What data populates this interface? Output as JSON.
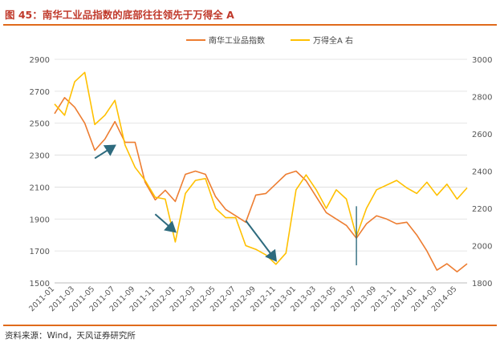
{
  "figure": {
    "title": "图 45：南华工业品指数的底部往往领先于万得全 A",
    "source": "资料来源：Wind，天风证券研究所"
  },
  "colors": {
    "accent": "#c0392b",
    "rule": "#e06a1b",
    "series_left": "#ed7d31",
    "series_right": "#ffc000",
    "arrow": "#2e6b7e",
    "grid": "#dcdcdc"
  },
  "chart_data": {
    "type": "line",
    "title": "",
    "grid": true,
    "legend_position": "top-center",
    "xlabel": "",
    "ylabel_left": "",
    "ylabel_right": "",
    "y_left": {
      "min": 1500,
      "max": 2900,
      "ticks": [
        1500,
        1700,
        1900,
        2100,
        2300,
        2500,
        2700,
        2900
      ]
    },
    "y_right": {
      "min": 1800,
      "max": 3000,
      "ticks": [
        1800,
        2000,
        2200,
        2400,
        2600,
        2800,
        3000
      ]
    },
    "x_ticks": [
      "2011-01",
      "2011-03",
      "2011-05",
      "2011-07",
      "2011-09",
      "2011-11",
      "2012-01",
      "2012-03",
      "2012-05",
      "2012-07",
      "2012-09",
      "2012-11",
      "2013-01",
      "2013-03",
      "2013-05",
      "2013-07",
      "2013-09",
      "2013-11",
      "2014-01",
      "2014-03",
      "2014-05"
    ],
    "series": [
      {
        "name": "南华工业品指数",
        "axis": "left",
        "x": [
          "2011-01",
          "2011-02",
          "2011-03",
          "2011-04",
          "2011-05",
          "2011-06",
          "2011-07",
          "2011-08",
          "2011-09",
          "2011-10",
          "2011-11",
          "2011-12",
          "2012-01",
          "2012-02",
          "2012-03",
          "2012-04",
          "2012-05",
          "2012-06",
          "2012-07",
          "2012-08",
          "2012-09",
          "2012-10",
          "2012-11",
          "2012-12",
          "2013-01",
          "2013-02",
          "2013-03",
          "2013-04",
          "2013-05",
          "2013-06",
          "2013-07",
          "2013-08",
          "2013-09",
          "2013-10",
          "2013-11",
          "2013-12",
          "2014-01",
          "2014-02",
          "2014-03",
          "2014-04",
          "2014-05",
          "2014-06"
        ],
        "values": [
          2560,
          2660,
          2600,
          2500,
          2330,
          2400,
          2510,
          2380,
          2380,
          2130,
          2020,
          2080,
          2010,
          2180,
          2200,
          2180,
          2040,
          1960,
          1920,
          1880,
          2050,
          2060,
          2120,
          2180,
          2200,
          2140,
          2040,
          1940,
          1900,
          1860,
          1780,
          1870,
          1920,
          1900,
          1870,
          1880,
          1800,
          1700,
          1580,
          1620,
          1570,
          1620
        ]
      },
      {
        "name": "万得全A 右",
        "axis": "right",
        "x": [
          "2011-01",
          "2011-02",
          "2011-03",
          "2011-04",
          "2011-05",
          "2011-06",
          "2011-07",
          "2011-08",
          "2011-09",
          "2011-10",
          "2011-11",
          "2011-12",
          "2012-01",
          "2012-02",
          "2012-03",
          "2012-04",
          "2012-05",
          "2012-06",
          "2012-07",
          "2012-08",
          "2012-09",
          "2012-10",
          "2012-11",
          "2012-12",
          "2013-01",
          "2013-02",
          "2013-03",
          "2013-04",
          "2013-05",
          "2013-06",
          "2013-07",
          "2013-08",
          "2013-09",
          "2013-11",
          "2013-12",
          "2014-01",
          "2014-02",
          "2014-03",
          "2014-04",
          "2014-05",
          "2014-06"
        ],
        "values": [
          2760,
          2700,
          2880,
          2930,
          2650,
          2700,
          2780,
          2540,
          2420,
          2350,
          2260,
          2250,
          2020,
          2280,
          2350,
          2360,
          2200,
          2150,
          2150,
          2000,
          1980,
          1950,
          1900,
          1960,
          2300,
          2380,
          2300,
          2200,
          2300,
          2250,
          2050,
          2200,
          2300,
          2350,
          2310,
          2280,
          2340,
          2270,
          2330,
          2250,
          2310
        ]
      }
    ],
    "arrows": [
      {
        "from": {
          "x": "2011-05",
          "y": 2280
        },
        "to": {
          "x": "2011-07",
          "y": 2360
        },
        "axis": "left"
      },
      {
        "from": {
          "x": "2011-11",
          "y": 1930
        },
        "to": {
          "x": "2012-01",
          "y": 1820
        },
        "axis": "left"
      },
      {
        "from": {
          "x": "2012-08",
          "y": 1890
        },
        "to": {
          "x": "2012-11",
          "y": 1640
        },
        "axis": "left"
      },
      {
        "from": {
          "x": "2013-07",
          "y": 1980
        },
        "to": {
          "x": "2013-07",
          "y": 1610
        },
        "axis": "left",
        "style": "line"
      }
    ]
  }
}
